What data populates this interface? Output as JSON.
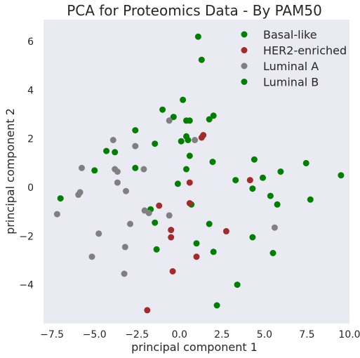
{
  "chart_data": {
    "type": "scatter",
    "title": "PCA for Proteomics Data - By PAM50",
    "xlabel": "principal component 1",
    "ylabel": "principal component 2",
    "xlim": [
      -8.0,
      10.0
    ],
    "ylim": [
      -5.6,
      6.9
    ],
    "xticks": [
      "−7.5",
      "−5.0",
      "−2.5",
      "0.0",
      "2.5",
      "5.0",
      "7.5",
      "10.0"
    ],
    "xtick_values": [
      -7.5,
      -5.0,
      -2.5,
      0.0,
      2.5,
      5.0,
      7.5,
      10.0
    ],
    "yticks": [
      "−4",
      "−2",
      "0",
      "2",
      "4",
      "6"
    ],
    "ytick_values": [
      -4,
      -2,
      0,
      2,
      4,
      6
    ],
    "grid": false,
    "background": "#eaeaf2",
    "legend_position": "top-right",
    "series": [
      {
        "name": "Basal-like",
        "color": "#008000",
        "points": [
          [
            1.1,
            6.2
          ],
          [
            1.3,
            5.25
          ],
          [
            0.2,
            3.6
          ],
          [
            -1.0,
            3.2
          ],
          [
            -0.35,
            2.9
          ],
          [
            0.6,
            2.75
          ],
          [
            2.0,
            2.95
          ],
          [
            0.4,
            2.75
          ],
          [
            1.75,
            2.8
          ],
          [
            0.4,
            2.1
          ],
          [
            -2.6,
            2.35
          ],
          [
            0.1,
            1.9
          ],
          [
            0.5,
            1.95
          ],
          [
            -1.45,
            1.8
          ],
          [
            -4.3,
            1.5
          ],
          [
            -3.8,
            1.45
          ],
          [
            0.6,
            1.3
          ],
          [
            1.95,
            1.05
          ],
          [
            4.4,
            1.15
          ],
          [
            7.45,
            1.0
          ],
          [
            -2.6,
            0.8
          ],
          [
            0.4,
            0.75
          ],
          [
            -5.0,
            0.7
          ],
          [
            5.95,
            0.65
          ],
          [
            -0.1,
            0.15
          ],
          [
            9.5,
            0.5
          ],
          [
            4.9,
            0.4
          ],
          [
            3.3,
            0.3
          ],
          [
            -7.0,
            -0.45
          ],
          [
            4.3,
            -0.05
          ],
          [
            5.35,
            -0.35
          ],
          [
            5.75,
            -0.7
          ],
          [
            7.7,
            -0.5
          ],
          [
            -1.7,
            -0.9
          ],
          [
            0.7,
            -0.7
          ],
          [
            -1.45,
            -1.45
          ],
          [
            1.75,
            -1.5
          ],
          [
            1.0,
            -2.3
          ],
          [
            4.3,
            -2.05
          ],
          [
            -1.35,
            -2.55
          ],
          [
            2.0,
            -2.65
          ],
          [
            5.5,
            -2.7
          ],
          [
            3.4,
            -4.0
          ],
          [
            2.2,
            -4.85
          ]
        ]
      },
      {
        "name": "HER2-enriched",
        "color": "#a52a2a",
        "points": [
          [
            1.4,
            2.15
          ],
          [
            1.3,
            2.05
          ],
          [
            0.6,
            0.2
          ],
          [
            4.15,
            0.3
          ],
          [
            -1.2,
            -0.75
          ],
          [
            0.6,
            -0.65
          ],
          [
            -0.5,
            -1.75
          ],
          [
            -0.5,
            -2.05
          ],
          [
            2.75,
            -1.8
          ],
          [
            -0.4,
            -3.45
          ],
          [
            1.0,
            -2.85
          ],
          [
            -1.9,
            -5.05
          ]
        ]
      },
      {
        "name": "Luminal A",
        "color": "#808080",
        "points": [
          [
            -0.6,
            2.75
          ],
          [
            -3.9,
            1.95
          ],
          [
            -2.6,
            1.7
          ],
          [
            0.9,
            1.95
          ],
          [
            -5.75,
            0.8
          ],
          [
            -3.8,
            0.75
          ],
          [
            -3.65,
            0.65
          ],
          [
            -2.1,
            0.75
          ],
          [
            -5.85,
            -0.2
          ],
          [
            -5.95,
            -0.3
          ],
          [
            -3.65,
            0.2
          ],
          [
            -3.15,
            -0.15
          ],
          [
            -7.2,
            -1.1
          ],
          [
            -2.05,
            -0.95
          ],
          [
            -1.8,
            -1.05
          ],
          [
            -0.6,
            -1.15
          ],
          [
            -2.9,
            -1.5
          ],
          [
            -4.75,
            -1.9
          ],
          [
            5.6,
            -1.65
          ],
          [
            -3.2,
            -2.45
          ],
          [
            -5.15,
            -2.85
          ],
          [
            -3.25,
            -3.55
          ]
        ]
      },
      {
        "name": "Luminal B",
        "color": "#008000",
        "points": []
      }
    ]
  }
}
